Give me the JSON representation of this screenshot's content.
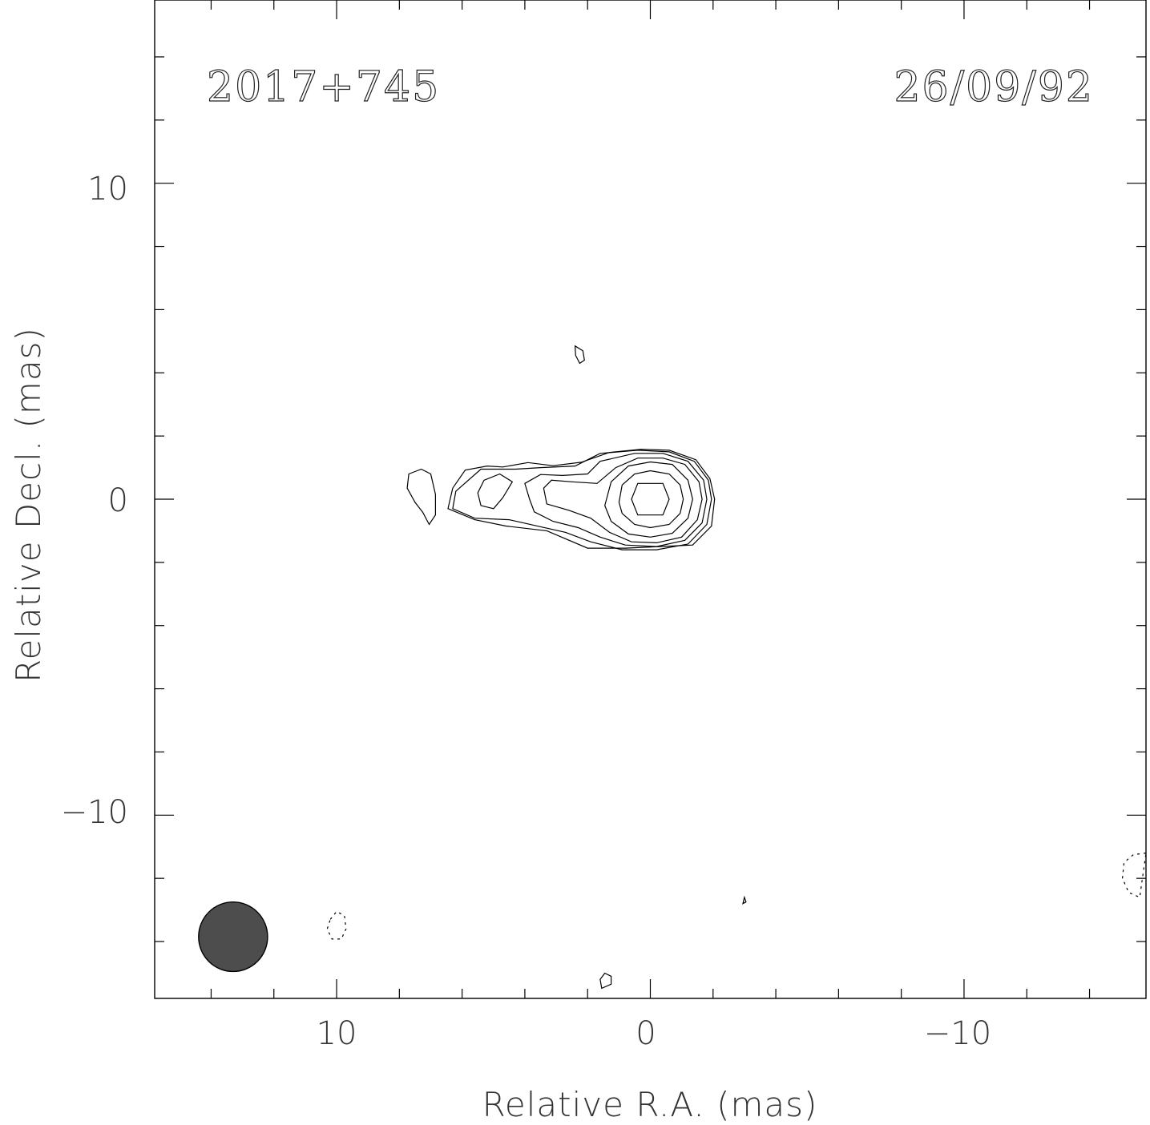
{
  "chart_data": {
    "type": "contour",
    "source_label": "2017+745",
    "epoch_label": "26/09/92",
    "xlabel": "Relative R.A. (mas)",
    "ylabel": "Relative Decl. (mas)",
    "xlim": [
      15.8,
      -15.8
    ],
    "ylim": [
      -15.8,
      15.8
    ],
    "x_major_ticks": [
      10,
      0,
      -10
    ],
    "x_tick_labels": [
      "10",
      "0",
      "−10"
    ],
    "y_major_ticks": [
      10,
      0,
      -10
    ],
    "y_tick_labels": [
      "10",
      "0",
      "−10"
    ],
    "minor_tick_step": 2,
    "beam": {
      "x": 13.3,
      "y": -13.85,
      "major_mas": 1.1,
      "minor_mas": 1.1,
      "pa_deg": 0,
      "color": "#4d4d4d"
    },
    "contours": [
      {
        "sign": "positive",
        "points": [
          [
            0.4,
            -0.5
          ],
          [
            -0.4,
            -0.5
          ],
          [
            -0.6,
            0
          ],
          [
            -0.4,
            0.5
          ],
          [
            0.4,
            0.5
          ],
          [
            0.6,
            0
          ]
        ]
      },
      {
        "sign": "positive",
        "points": [
          [
            1.0,
            -0.1
          ],
          [
            0.9,
            0.45
          ],
          [
            0.5,
            0.8
          ],
          [
            0,
            0.9
          ],
          [
            -0.6,
            0.8
          ],
          [
            -0.95,
            0.45
          ],
          [
            -1.05,
            0
          ],
          [
            -0.95,
            -0.45
          ],
          [
            -0.6,
            -0.8
          ],
          [
            0,
            -0.9
          ],
          [
            0.5,
            -0.8
          ],
          [
            0.9,
            -0.45
          ]
        ]
      },
      {
        "sign": "positive",
        "points": [
          [
            1.45,
            -0.2
          ],
          [
            1.25,
            0.55
          ],
          [
            0.7,
            1.05
          ],
          [
            0,
            1.18
          ],
          [
            -0.7,
            1.1
          ],
          [
            -1.2,
            0.6
          ],
          [
            -1.35,
            0
          ],
          [
            -1.2,
            -0.6
          ],
          [
            -0.7,
            -1.08
          ],
          [
            0,
            -1.2
          ],
          [
            0.7,
            -1.1
          ],
          [
            1.25,
            -0.7
          ]
        ]
      },
      {
        "sign": "positive",
        "points": [
          [
            3.3,
            -0.15
          ],
          [
            3.4,
            0.35
          ],
          [
            3.15,
            0.6
          ],
          [
            2.5,
            0.55
          ],
          [
            1.7,
            0.5
          ],
          [
            1.1,
            1.0
          ],
          [
            0.4,
            1.3
          ],
          [
            -0.4,
            1.3
          ],
          [
            -1.1,
            1.1
          ],
          [
            -1.55,
            0.55
          ],
          [
            -1.65,
            0
          ],
          [
            -1.5,
            -0.65
          ],
          [
            -1.0,
            -1.2
          ],
          [
            -0.2,
            -1.38
          ],
          [
            0.6,
            -1.35
          ],
          [
            1.3,
            -1.05
          ],
          [
            1.9,
            -0.6
          ],
          [
            2.6,
            -0.35
          ]
        ]
      },
      {
        "sign": "positive",
        "points": [
          [
            3.85,
            0
          ],
          [
            4.0,
            0.5
          ],
          [
            3.5,
            0.78
          ],
          [
            2.8,
            0.75
          ],
          [
            2.0,
            0.8
          ],
          [
            1.6,
            1.2
          ],
          [
            0.5,
            1.45
          ],
          [
            -0.4,
            1.45
          ],
          [
            -1.2,
            1.2
          ],
          [
            -1.7,
            0.6
          ],
          [
            -1.8,
            0
          ],
          [
            -1.65,
            -0.75
          ],
          [
            -1.1,
            -1.3
          ],
          [
            -0.2,
            -1.5
          ],
          [
            0.8,
            -1.45
          ],
          [
            1.6,
            -1.2
          ],
          [
            2.3,
            -0.9
          ],
          [
            3.1,
            -0.7
          ],
          [
            3.7,
            -0.4
          ]
        ]
      },
      {
        "sign": "positive",
        "points": [
          [
            4.7,
            0.05
          ],
          [
            4.4,
            0.55
          ],
          [
            4.8,
            0.8
          ],
          [
            5.3,
            0.6
          ],
          [
            5.5,
            0.2
          ],
          [
            5.4,
            -0.2
          ],
          [
            5.0,
            -0.3
          ]
        ]
      },
      {
        "sign": "positive",
        "points": [
          [
            6.2,
            0.25
          ],
          [
            5.4,
            0.95
          ],
          [
            4.3,
            0.95
          ],
          [
            3.5,
            1.0
          ],
          [
            2.4,
            1.05
          ],
          [
            1.6,
            1.45
          ],
          [
            0.4,
            1.55
          ],
          [
            -0.6,
            1.5
          ],
          [
            -1.4,
            1.2
          ],
          [
            -1.85,
            0.6
          ],
          [
            -1.95,
            0
          ],
          [
            -1.8,
            -0.8
          ],
          [
            -1.2,
            -1.42
          ],
          [
            -0.2,
            -1.6
          ],
          [
            0.9,
            -1.6
          ],
          [
            1.9,
            -1.35
          ],
          [
            2.7,
            -1.05
          ],
          [
            4.5,
            -0.65
          ],
          [
            5.6,
            -0.6
          ],
          [
            6.3,
            -0.3
          ]
        ]
      },
      {
        "sign": "positive",
        "points": [
          [
            6.45,
            -0.3
          ],
          [
            6.3,
            0.35
          ],
          [
            5.9,
            0.92
          ],
          [
            5.2,
            1.05
          ],
          [
            4.7,
            1.02
          ],
          [
            3.9,
            1.16
          ],
          [
            3.1,
            1.06
          ],
          [
            2.2,
            1.17
          ],
          [
            1.3,
            1.48
          ],
          [
            0.3,
            1.58
          ],
          [
            -0.6,
            1.55
          ],
          [
            -1.45,
            1.25
          ],
          [
            -1.9,
            0.65
          ],
          [
            -2.05,
            0
          ],
          [
            -1.95,
            -0.85
          ],
          [
            -1.35,
            -1.45
          ],
          [
            -0.3,
            -1.5
          ],
          [
            0.8,
            -1.55
          ],
          [
            2.0,
            -1.55
          ],
          [
            3.3,
            -1.0
          ],
          [
            4.6,
            -0.85
          ],
          [
            5.6,
            -0.65
          ]
        ]
      },
      {
        "sign": "positive",
        "points": [
          [
            7.7,
            0.8
          ],
          [
            7.3,
            0.95
          ],
          [
            7.0,
            0.8
          ],
          [
            6.85,
            0.15
          ],
          [
            6.85,
            -0.5
          ],
          [
            7.05,
            -0.8
          ],
          [
            7.25,
            -0.42
          ],
          [
            7.5,
            -0.1
          ],
          [
            7.75,
            0.35
          ]
        ]
      },
      {
        "sign": "positive",
        "points": [
          [
            2.4,
            4.85
          ],
          [
            2.15,
            4.7
          ],
          [
            2.1,
            4.4
          ],
          [
            2.25,
            4.3
          ],
          [
            2.38,
            4.55
          ]
        ]
      },
      {
        "sign": "positive",
        "points": [
          [
            1.45,
            -15.0
          ],
          [
            1.25,
            -15.1
          ],
          [
            1.25,
            -15.35
          ],
          [
            1.55,
            -15.48
          ],
          [
            1.6,
            -15.2
          ]
        ]
      },
      {
        "sign": "positive",
        "points": [
          [
            -3.0,
            -12.6
          ],
          [
            -3.05,
            -12.75
          ],
          [
            -2.95,
            -12.8
          ]
        ]
      },
      {
        "sign": "negative",
        "points": [
          [
            10.2,
            -13.3
          ],
          [
            10.0,
            -13.05
          ],
          [
            9.75,
            -13.18
          ],
          [
            9.7,
            -13.6
          ],
          [
            9.85,
            -13.92
          ],
          [
            10.15,
            -13.92
          ],
          [
            10.3,
            -13.6
          ]
        ]
      },
      {
        "sign": "negative",
        "points": [
          [
            -15.8,
            -11.2
          ],
          [
            -15.4,
            -11.25
          ],
          [
            -15.1,
            -11.5
          ],
          [
            -15.05,
            -12.0
          ],
          [
            -15.25,
            -12.45
          ],
          [
            -15.6,
            -12.6
          ]
        ]
      }
    ]
  }
}
